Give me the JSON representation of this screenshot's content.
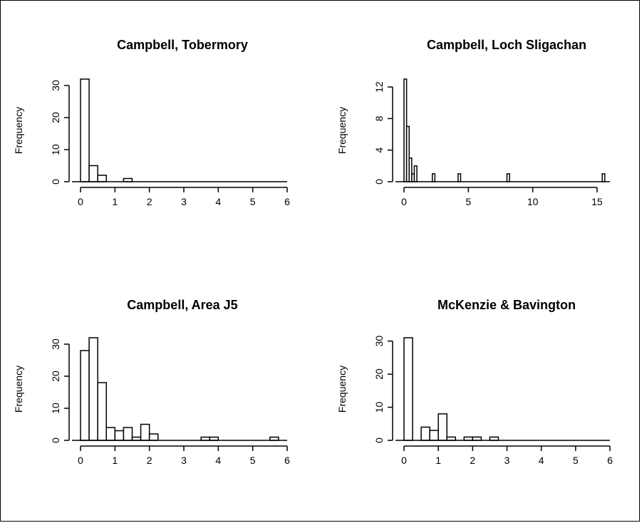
{
  "chart_data": [
    {
      "type": "bar",
      "subtype": "histogram",
      "title": "Campbell, Tobermory",
      "xlabel": "",
      "ylabel": "Frequency",
      "xlim": [
        0,
        6
      ],
      "ylim": [
        0,
        32
      ],
      "x_ticks": [
        "0",
        "1",
        "2",
        "3",
        "4",
        "5",
        "6"
      ],
      "y_ticks": [
        "0",
        "10",
        "20",
        "30"
      ],
      "bin_width": 0.25,
      "bins": [
        {
          "x0": 0.0,
          "x1": 0.25,
          "count": 32
        },
        {
          "x0": 0.25,
          "x1": 0.5,
          "count": 5
        },
        {
          "x0": 0.5,
          "x1": 0.75,
          "count": 2
        },
        {
          "x0": 1.25,
          "x1": 1.5,
          "count": 1
        }
      ]
    },
    {
      "type": "bar",
      "subtype": "histogram",
      "title": "Campbell, Loch Sligachan",
      "xlabel": "",
      "ylabel": "Frequency",
      "xlim": [
        0,
        16
      ],
      "ylim": [
        0,
        13
      ],
      "x_ticks": [
        "0",
        "5",
        "10",
        "15"
      ],
      "y_ticks": [
        "0",
        "4",
        "8",
        "12"
      ],
      "bin_width": 0.2,
      "bins": [
        {
          "x0": 0.0,
          "x1": 0.2,
          "count": 13
        },
        {
          "x0": 0.2,
          "x1": 0.4,
          "count": 7
        },
        {
          "x0": 0.4,
          "x1": 0.6,
          "count": 3
        },
        {
          "x0": 0.6,
          "x1": 0.8,
          "count": 1
        },
        {
          "x0": 0.8,
          "x1": 1.0,
          "count": 2
        },
        {
          "x0": 2.2,
          "x1": 2.4,
          "count": 1
        },
        {
          "x0": 4.2,
          "x1": 4.4,
          "count": 1
        },
        {
          "x0": 8.0,
          "x1": 8.2,
          "count": 1
        },
        {
          "x0": 15.4,
          "x1": 15.6,
          "count": 1
        }
      ]
    },
    {
      "type": "bar",
      "subtype": "histogram",
      "title": "Campbell, Area J5",
      "xlabel": "",
      "ylabel": "Frequency",
      "xlim": [
        0,
        6
      ],
      "ylim": [
        0,
        32
      ],
      "x_ticks": [
        "0",
        "1",
        "2",
        "3",
        "4",
        "5",
        "6"
      ],
      "y_ticks": [
        "0",
        "10",
        "20",
        "30"
      ],
      "bin_width": 0.25,
      "bins": [
        {
          "x0": 0.0,
          "x1": 0.25,
          "count": 28
        },
        {
          "x0": 0.25,
          "x1": 0.5,
          "count": 32
        },
        {
          "x0": 0.5,
          "x1": 0.75,
          "count": 18
        },
        {
          "x0": 0.75,
          "x1": 1.0,
          "count": 4
        },
        {
          "x0": 1.0,
          "x1": 1.25,
          "count": 3
        },
        {
          "x0": 1.25,
          "x1": 1.5,
          "count": 4
        },
        {
          "x0": 1.5,
          "x1": 1.75,
          "count": 1
        },
        {
          "x0": 1.75,
          "x1": 2.0,
          "count": 5
        },
        {
          "x0": 2.0,
          "x1": 2.25,
          "count": 2
        },
        {
          "x0": 3.5,
          "x1": 3.75,
          "count": 1
        },
        {
          "x0": 3.75,
          "x1": 4.0,
          "count": 1
        },
        {
          "x0": 5.5,
          "x1": 5.75,
          "count": 1
        }
      ]
    },
    {
      "type": "bar",
      "subtype": "histogram",
      "title": "McKenzie & Bavington",
      "xlabel": "",
      "ylabel": "Frequency",
      "xlim": [
        0,
        6
      ],
      "ylim": [
        0,
        31
      ],
      "x_ticks": [
        "0",
        "1",
        "2",
        "3",
        "4",
        "5",
        "6"
      ],
      "y_ticks": [
        "0",
        "10",
        "20",
        "30"
      ],
      "bin_width": 0.25,
      "bins": [
        {
          "x0": 0.0,
          "x1": 0.25,
          "count": 31
        },
        {
          "x0": 0.5,
          "x1": 0.75,
          "count": 4
        },
        {
          "x0": 0.75,
          "x1": 1.0,
          "count": 3
        },
        {
          "x0": 1.0,
          "x1": 1.25,
          "count": 8
        },
        {
          "x0": 1.25,
          "x1": 1.5,
          "count": 1
        },
        {
          "x0": 1.75,
          "x1": 2.0,
          "count": 1
        },
        {
          "x0": 2.0,
          "x1": 2.25,
          "count": 1
        },
        {
          "x0": 2.5,
          "x1": 2.75,
          "count": 1
        }
      ]
    }
  ],
  "colors": {
    "bar_fill": "#ffffff",
    "bar_stroke": "#000000",
    "axis": "#000000",
    "background": "#ffffff"
  }
}
